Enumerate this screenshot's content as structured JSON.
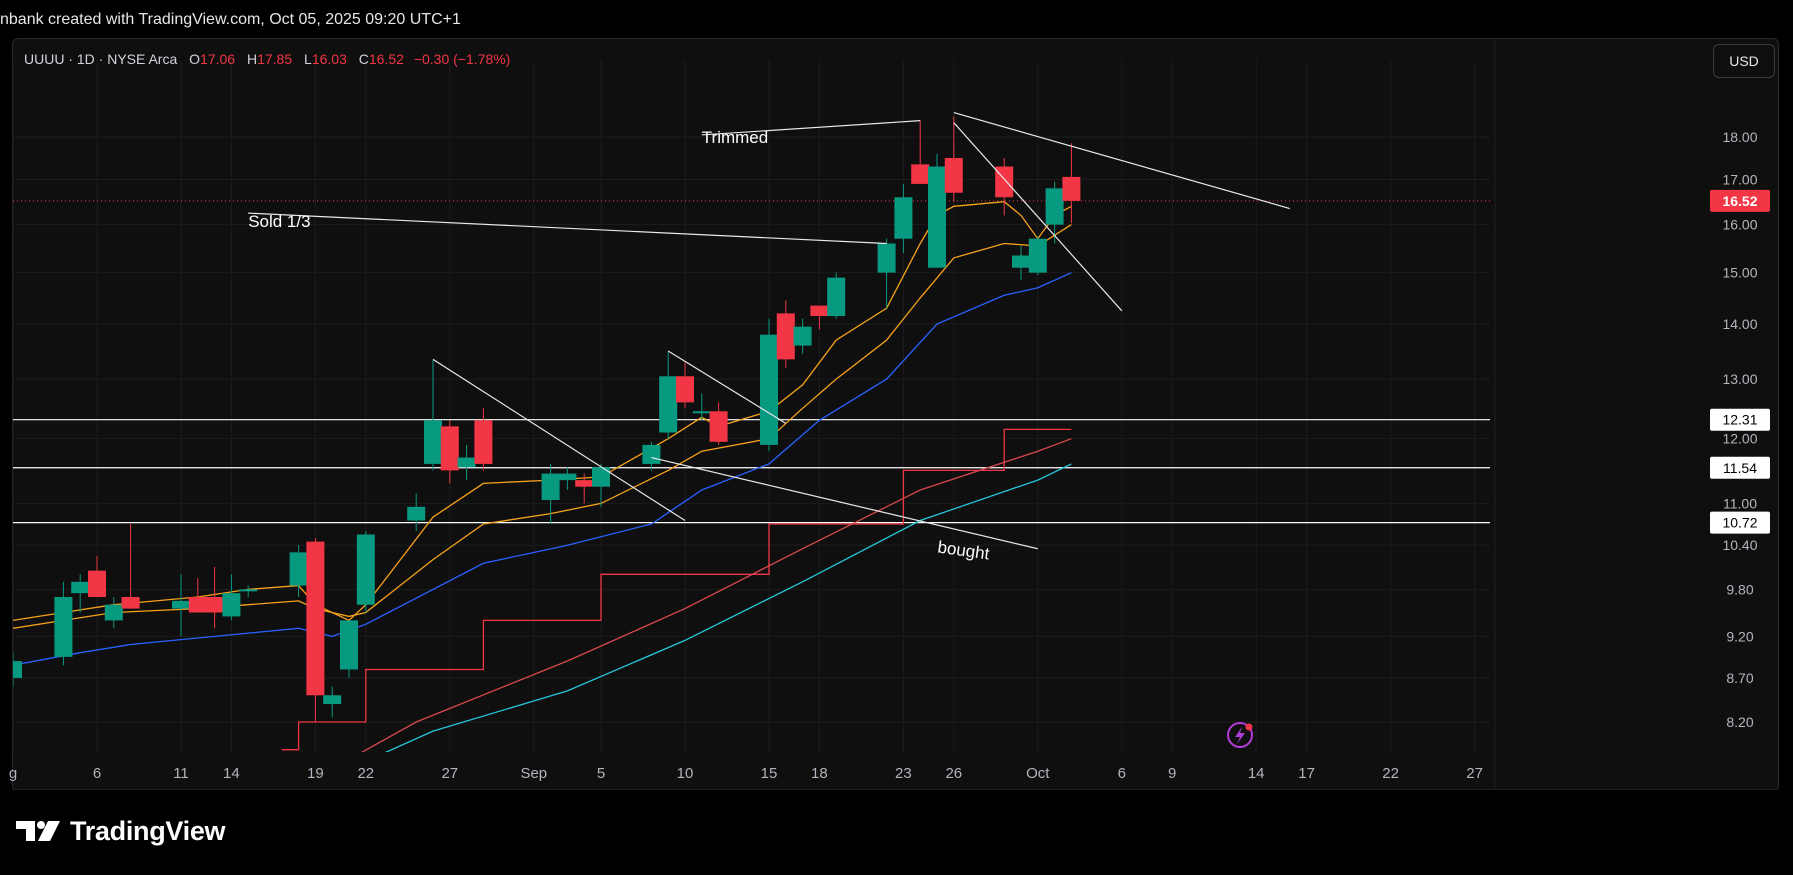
{
  "credit": "nbank created with TradingView.com, Oct 05, 2025 09:20 UTC+1",
  "legend": {
    "symbol": "UUUU · 1D · NYSE Arca",
    "o_label": "O",
    "o_value": "17.06",
    "h_label": "H",
    "h_value": "17.85",
    "l_label": "L",
    "l_value": "16.03",
    "c_label": "C",
    "c_value": "16.52",
    "change": "−0.30 (−1.78%)"
  },
  "currency_button": "USD",
  "brand": "TradingView",
  "colors": {
    "up": "#089981",
    "down": "#f23645",
    "ema_fast": "#f7a21b",
    "ema_slow": "#2962ff",
    "kijun": "#f23645",
    "lower_red": "#e0474c",
    "cyan": "#26c6da",
    "grid": "#1c1c1c",
    "background": "#0f0f0f",
    "text": "#b2b5be"
  },
  "chart_data": {
    "type": "candlestick",
    "symbol": "UUUU",
    "interval": "1D",
    "exchange": "NYSE Arca",
    "x_ticks": [
      {
        "label": "g",
        "date": "2025-08-01"
      },
      {
        "label": "6",
        "date": "2025-08-06"
      },
      {
        "label": "11",
        "date": "2025-08-11"
      },
      {
        "label": "14",
        "date": "2025-08-14"
      },
      {
        "label": "19",
        "date": "2025-08-19"
      },
      {
        "label": "22",
        "date": "2025-08-22"
      },
      {
        "label": "27",
        "date": "2025-08-27"
      },
      {
        "label": "Sep",
        "date": "2025-09-01"
      },
      {
        "label": "5",
        "date": "2025-09-05"
      },
      {
        "label": "10",
        "date": "2025-09-10"
      },
      {
        "label": "15",
        "date": "2025-09-15"
      },
      {
        "label": "18",
        "date": "2025-09-18"
      },
      {
        "label": "23",
        "date": "2025-09-23"
      },
      {
        "label": "26",
        "date": "2025-09-26"
      },
      {
        "label": "Oct",
        "date": "2025-10-01"
      },
      {
        "label": "6",
        "date": "2025-10-06"
      },
      {
        "label": "9",
        "date": "2025-10-09"
      },
      {
        "label": "14",
        "date": "2025-10-14"
      },
      {
        "label": "17",
        "date": "2025-10-17"
      },
      {
        "label": "22",
        "date": "2025-10-22"
      },
      {
        "label": "27",
        "date": "2025-10-27"
      }
    ],
    "y_axis": {
      "scale": "log",
      "ticks": [
        "18.00",
        "17.00",
        "16.00",
        "15.00",
        "14.00",
        "13.00",
        "12.00",
        "11.00",
        "10.40",
        "9.80",
        "9.20",
        "8.70",
        "8.20"
      ],
      "tick_values": [
        18,
        17,
        16,
        15,
        14,
        13,
        12,
        11,
        10.4,
        9.8,
        9.2,
        8.7,
        8.2
      ],
      "range": [
        7.75,
        19.5
      ]
    },
    "candles": [
      {
        "date": "2025-08-01",
        "o": 8.7,
        "h": 9.0,
        "l": 8.6,
        "c": 8.9
      },
      {
        "date": "2025-08-04",
        "o": 8.95,
        "h": 9.9,
        "l": 8.85,
        "c": 9.7
      },
      {
        "date": "2025-08-05",
        "o": 9.75,
        "h": 10.0,
        "l": 9.5,
        "c": 9.9
      },
      {
        "date": "2025-08-06",
        "o": 10.05,
        "h": 10.25,
        "l": 9.7,
        "c": 9.7
      },
      {
        "date": "2025-08-07",
        "o": 9.4,
        "h": 9.7,
        "l": 9.3,
        "c": 9.6
      },
      {
        "date": "2025-08-08",
        "o": 9.7,
        "h": 10.7,
        "l": 9.55,
        "c": 9.55
      },
      {
        "date": "2025-08-11",
        "o": 9.55,
        "h": 10.0,
        "l": 9.2,
        "c": 9.65
      },
      {
        "date": "2025-08-12",
        "o": 9.7,
        "h": 9.95,
        "l": 9.5,
        "c": 9.5
      },
      {
        "date": "2025-08-13",
        "o": 9.7,
        "h": 10.1,
        "l": 9.3,
        "c": 9.5
      },
      {
        "date": "2025-08-14",
        "o": 9.45,
        "h": 10.0,
        "l": 9.4,
        "c": 9.75
      },
      {
        "date": "2025-08-15",
        "o": 9.8,
        "h": 9.85,
        "l": 9.7,
        "c": 9.8
      },
      {
        "date": "2025-08-18",
        "o": 9.85,
        "h": 10.4,
        "l": 9.7,
        "c": 10.3
      },
      {
        "date": "2025-08-19",
        "o": 10.45,
        "h": 10.5,
        "l": 8.2,
        "c": 8.5
      },
      {
        "date": "2025-08-20",
        "o": 8.4,
        "h": 8.6,
        "l": 8.25,
        "c": 8.5
      },
      {
        "date": "2025-08-21",
        "o": 8.8,
        "h": 9.4,
        "l": 8.7,
        "c": 9.4
      },
      {
        "date": "2025-08-22",
        "o": 9.6,
        "h": 10.6,
        "l": 9.5,
        "c": 10.55
      },
      {
        "date": "2025-08-25",
        "o": 10.75,
        "h": 11.15,
        "l": 10.6,
        "c": 10.95
      },
      {
        "date": "2025-08-26",
        "o": 11.6,
        "h": 13.35,
        "l": 11.5,
        "c": 12.3
      },
      {
        "date": "2025-08-27",
        "o": 12.2,
        "h": 12.3,
        "l": 11.3,
        "c": 11.5
      },
      {
        "date": "2025-08-28",
        "o": 11.55,
        "h": 11.9,
        "l": 11.35,
        "c": 11.7
      },
      {
        "date": "2025-08-29",
        "o": 12.3,
        "h": 12.5,
        "l": 11.5,
        "c": 11.6
      },
      {
        "date": "2025-09-02",
        "o": 11.05,
        "h": 11.6,
        "l": 10.7,
        "c": 11.45
      },
      {
        "date": "2025-09-03",
        "o": 11.35,
        "h": 11.55,
        "l": 11.2,
        "c": 11.45
      },
      {
        "date": "2025-09-04",
        "o": 11.35,
        "h": 11.45,
        "l": 11.0,
        "c": 11.25
      },
      {
        "date": "2025-09-05",
        "o": 11.25,
        "h": 11.6,
        "l": 10.95,
        "c": 11.55
      },
      {
        "date": "2025-09-08",
        "o": 11.6,
        "h": 11.95,
        "l": 11.5,
        "c": 11.9
      },
      {
        "date": "2025-09-09",
        "o": 12.1,
        "h": 13.5,
        "l": 12.0,
        "c": 13.05
      },
      {
        "date": "2025-09-10",
        "o": 13.05,
        "h": 13.3,
        "l": 12.5,
        "c": 12.6
      },
      {
        "date": "2025-09-11",
        "o": 12.45,
        "h": 12.75,
        "l": 12.3,
        "c": 12.45
      },
      {
        "date": "2025-09-12",
        "o": 12.45,
        "h": 12.6,
        "l": 11.9,
        "c": 11.95
      },
      {
        "date": "2025-09-15",
        "o": 11.9,
        "h": 14.1,
        "l": 11.8,
        "c": 13.8
      },
      {
        "date": "2025-09-16",
        "o": 14.2,
        "h": 14.45,
        "l": 13.2,
        "c": 13.35
      },
      {
        "date": "2025-09-17",
        "o": 13.6,
        "h": 14.1,
        "l": 13.45,
        "c": 13.95
      },
      {
        "date": "2025-09-18",
        "o": 14.35,
        "h": 14.35,
        "l": 13.9,
        "c": 14.15
      },
      {
        "date": "2025-09-19",
        "o": 14.15,
        "h": 15.0,
        "l": 14.1,
        "c": 14.9
      },
      {
        "date": "2025-09-22",
        "o": 15.0,
        "h": 15.7,
        "l": 14.3,
        "c": 15.6
      },
      {
        "date": "2025-09-23",
        "o": 15.7,
        "h": 16.9,
        "l": 15.4,
        "c": 16.6
      },
      {
        "date": "2025-09-24",
        "o": 17.35,
        "h": 18.4,
        "l": 16.9,
        "c": 16.9
      },
      {
        "date": "2025-09-25",
        "o": 15.1,
        "h": 17.6,
        "l": 15.1,
        "c": 17.3
      },
      {
        "date": "2025-09-26",
        "o": 17.5,
        "h": 18.5,
        "l": 16.5,
        "c": 16.7
      },
      {
        "date": "2025-09-29",
        "o": 17.3,
        "h": 17.5,
        "l": 16.2,
        "c": 16.6
      },
      {
        "date": "2025-09-30",
        "o": 15.1,
        "h": 15.55,
        "l": 14.85,
        "c": 15.35
      },
      {
        "date": "2025-10-01",
        "o": 15.0,
        "h": 15.75,
        "l": 14.95,
        "c": 15.7
      },
      {
        "date": "2025-10-02",
        "o": 16.0,
        "h": 16.95,
        "l": 15.6,
        "c": 16.8
      },
      {
        "date": "2025-10-03",
        "o": 17.06,
        "h": 17.85,
        "l": 16.03,
        "c": 16.52
      }
    ],
    "indicators": [
      {
        "name": "ema_fast",
        "color": "#f7a21b",
        "points": [
          [
            "2025-08-01",
            9.4
          ],
          [
            "2025-08-04",
            9.5
          ],
          [
            "2025-08-07",
            9.6
          ],
          [
            "2025-08-12",
            9.7
          ],
          [
            "2025-08-15",
            9.8
          ],
          [
            "2025-08-18",
            9.85
          ],
          [
            "2025-08-19",
            9.6
          ],
          [
            "2025-08-21",
            9.4
          ],
          [
            "2025-08-22",
            9.6
          ],
          [
            "2025-08-26",
            10.8
          ],
          [
            "2025-08-29",
            11.3
          ],
          [
            "2025-09-02",
            11.35
          ],
          [
            "2025-09-05",
            11.4
          ],
          [
            "2025-09-09",
            12.0
          ],
          [
            "2025-09-11",
            12.35
          ],
          [
            "2025-09-12",
            12.2
          ],
          [
            "2025-09-15",
            12.45
          ],
          [
            "2025-09-17",
            12.9
          ],
          [
            "2025-09-19",
            13.7
          ],
          [
            "2025-09-22",
            14.3
          ],
          [
            "2025-09-24",
            15.6
          ],
          [
            "2025-09-25",
            16.2
          ],
          [
            "2025-09-26",
            16.4
          ],
          [
            "2025-09-29",
            16.5
          ],
          [
            "2025-09-30",
            16.2
          ],
          [
            "2025-10-01",
            15.7
          ],
          [
            "2025-10-02",
            16.2
          ],
          [
            "2025-10-03",
            16.4
          ]
        ]
      },
      {
        "name": "ema_mid",
        "color": "#f7a21b",
        "points": [
          [
            "2025-08-01",
            9.3
          ],
          [
            "2025-08-04",
            9.4
          ],
          [
            "2025-08-07",
            9.5
          ],
          [
            "2025-08-12",
            9.55
          ],
          [
            "2025-08-15",
            9.6
          ],
          [
            "2025-08-18",
            9.65
          ],
          [
            "2025-08-19",
            9.55
          ],
          [
            "2025-08-21",
            9.45
          ],
          [
            "2025-08-22",
            9.5
          ],
          [
            "2025-08-26",
            10.2
          ],
          [
            "2025-08-29",
            10.7
          ],
          [
            "2025-09-02",
            10.85
          ],
          [
            "2025-09-05",
            11.0
          ],
          [
            "2025-09-09",
            11.5
          ],
          [
            "2025-09-11",
            11.8
          ],
          [
            "2025-09-15",
            12.0
          ],
          [
            "2025-09-17",
            12.5
          ],
          [
            "2025-09-19",
            13.0
          ],
          [
            "2025-09-22",
            13.7
          ],
          [
            "2025-09-24",
            14.5
          ],
          [
            "2025-09-26",
            15.3
          ],
          [
            "2025-09-29",
            15.6
          ],
          [
            "2025-10-01",
            15.55
          ],
          [
            "2025-10-03",
            16.0
          ]
        ]
      },
      {
        "name": "ema_slow",
        "color": "#2962ff",
        "points": [
          [
            "2025-07-30",
            8.7
          ],
          [
            "2025-08-01",
            8.85
          ],
          [
            "2025-08-05",
            9.0
          ],
          [
            "2025-08-08",
            9.1
          ],
          [
            "2025-08-13",
            9.2
          ],
          [
            "2025-08-18",
            9.3
          ],
          [
            "2025-08-20",
            9.2
          ],
          [
            "2025-08-22",
            9.35
          ],
          [
            "2025-08-26",
            9.8
          ],
          [
            "2025-08-29",
            10.15
          ],
          [
            "2025-09-03",
            10.4
          ],
          [
            "2025-09-08",
            10.7
          ],
          [
            "2025-09-11",
            11.2
          ],
          [
            "2025-09-15",
            11.6
          ],
          [
            "2025-09-18",
            12.3
          ],
          [
            "2025-09-22",
            13.0
          ],
          [
            "2025-09-25",
            14.0
          ],
          [
            "2025-09-29",
            14.55
          ],
          [
            "2025-10-01",
            14.7
          ],
          [
            "2025-10-03",
            15.0
          ]
        ]
      },
      {
        "name": "red_step",
        "color": "#f23645",
        "step": true,
        "points": [
          [
            "2025-08-17",
            7.9
          ],
          [
            "2025-08-18",
            8.2
          ],
          [
            "2025-08-21",
            8.2
          ],
          [
            "2025-08-22",
            8.8
          ],
          [
            "2025-08-28",
            8.8
          ],
          [
            "2025-08-29",
            9.4
          ],
          [
            "2025-09-04",
            9.4
          ],
          [
            "2025-09-05",
            10.0
          ],
          [
            "2025-09-12",
            10.0
          ],
          [
            "2025-09-15",
            10.7
          ],
          [
            "2025-09-22",
            10.7
          ],
          [
            "2025-09-23",
            11.5
          ],
          [
            "2025-09-26",
            11.5
          ],
          [
            "2025-09-29",
            12.15
          ],
          [
            "2025-10-03",
            12.15
          ]
        ]
      },
      {
        "name": "red_trend",
        "color": "#d9484e",
        "points": [
          [
            "2025-08-20",
            7.7
          ],
          [
            "2025-08-25",
            8.2
          ],
          [
            "2025-09-03",
            8.9
          ],
          [
            "2025-09-10",
            9.55
          ],
          [
            "2025-09-17",
            10.35
          ],
          [
            "2025-09-24",
            11.2
          ],
          [
            "2025-10-01",
            11.8
          ],
          [
            "2025-10-03",
            12.0
          ]
        ]
      },
      {
        "name": "cyan_trend",
        "color": "#26c6da",
        "points": [
          [
            "2025-08-21",
            7.7
          ],
          [
            "2025-08-26",
            8.1
          ],
          [
            "2025-09-03",
            8.55
          ],
          [
            "2025-09-10",
            9.15
          ],
          [
            "2025-09-17",
            9.9
          ],
          [
            "2025-09-24",
            10.75
          ],
          [
            "2025-10-01",
            11.35
          ],
          [
            "2025-10-03",
            11.6
          ]
        ]
      }
    ],
    "price_levels": [
      {
        "label": "12.31",
        "value": 12.31
      },
      {
        "label": "11.54",
        "value": 11.54
      },
      {
        "label": "10.72",
        "value": 10.72
      }
    ],
    "last_price": {
      "label": "16.52",
      "value": 16.52
    },
    "drawings": [
      {
        "kind": "line",
        "from": [
          "2025-08-26",
          13.35
        ],
        "to": [
          "2025-09-10",
          10.75
        ]
      },
      {
        "kind": "line",
        "from": [
          "2025-09-09",
          13.5
        ],
        "to": [
          "2025-09-16",
          12.25
        ]
      },
      {
        "kind": "line",
        "from": [
          "2025-09-08",
          11.7
        ],
        "to": [
          "2025-10-01",
          10.35
        ]
      },
      {
        "kind": "line",
        "from": [
          "2025-08-15",
          16.25
        ],
        "to": [
          "2025-09-22",
          15.6
        ]
      },
      {
        "kind": "line",
        "from": [
          "2025-09-11",
          18.05
        ],
        "to": [
          "2025-09-24",
          18.4
        ]
      },
      {
        "kind": "line",
        "from": [
          "2025-09-26",
          18.6
        ],
        "to": [
          "2025-10-16",
          16.35
        ]
      },
      {
        "kind": "line",
        "from": [
          "2025-09-26",
          18.35
        ],
        "to": [
          "2025-10-06",
          14.25
        ]
      }
    ],
    "annotations": [
      {
        "text": "Trimmed",
        "at": [
          "2025-09-11",
          17.85
        ]
      },
      {
        "text": "Sold 1/3",
        "at": [
          "2025-08-15",
          15.95
        ]
      },
      {
        "text": "bought",
        "at": [
          "2025-09-25",
          10.3
        ],
        "rotate": 8
      }
    ]
  }
}
